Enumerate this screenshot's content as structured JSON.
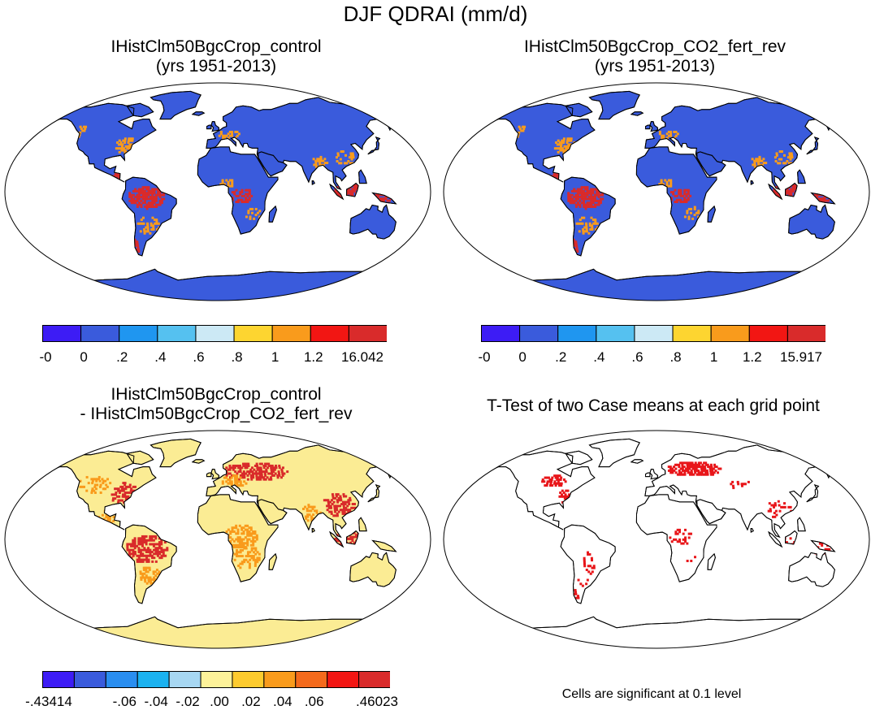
{
  "title": "DJF QDRAI (mm/d)",
  "panels": {
    "top_left": {
      "title_line1": "IHistClm50BgcCrop_control",
      "title_line2": "(yrs 1951-2013)"
    },
    "top_right": {
      "title_line1": "IHistClm50BgcCrop_CO2_fert_rev",
      "title_line2": "(yrs 1951-2013)"
    },
    "bottom_left": {
      "title_line1": "IHistClm50BgcCrop_control",
      "title_line2": "- IHistClm50BgcCrop_CO2_fert_rev"
    },
    "bottom_right": {
      "title_line1": "T-Test of two Case means at each grid point",
      "note": "Cells are significant at 0.1 level"
    }
  },
  "colorbars": {
    "top_left": {
      "colors": [
        "#3d1cf5",
        "#3a5bdc",
        "#1f96f0",
        "#55c1f0",
        "#cce9f5",
        "#fdd530",
        "#f99b1c",
        "#f21613",
        "#d92b2b"
      ],
      "labels": [
        "-0",
        "0",
        ".2",
        ".4",
        ".6",
        ".8",
        "1",
        "1.2",
        "16.042"
      ]
    },
    "top_right": {
      "colors": [
        "#3d1cf5",
        "#3a5bdc",
        "#1f96f0",
        "#55c1f0",
        "#cce9f5",
        "#fdd530",
        "#f99b1c",
        "#f21613",
        "#d92b2b"
      ],
      "labels": [
        "-0",
        "0",
        ".2",
        ".4",
        ".6",
        ".8",
        "1",
        "1.2",
        "15.917"
      ]
    },
    "bottom_left": {
      "colors": [
        "#3d1cf5",
        "#3a5bdc",
        "#2a8ef0",
        "#1bb2f0",
        "#a7d7f2",
        "#fdf29a",
        "#fdcb2e",
        "#f99b1c",
        "#f46a1c",
        "#f21613",
        "#d92b2b"
      ],
      "labels": [
        "-.43414",
        "-.06",
        "-.04",
        "-.02",
        ".00",
        ".02",
        ".04",
        ".06",
        ".46023"
      ]
    }
  },
  "map_colors": {
    "ocean": "#ffffff",
    "land_low": "#3a5bdc",
    "land_diff": "#fbec94",
    "hot_orange": "#f99b1c",
    "hot_red": "#d92b2b",
    "sig_red": "#e8161a"
  }
}
